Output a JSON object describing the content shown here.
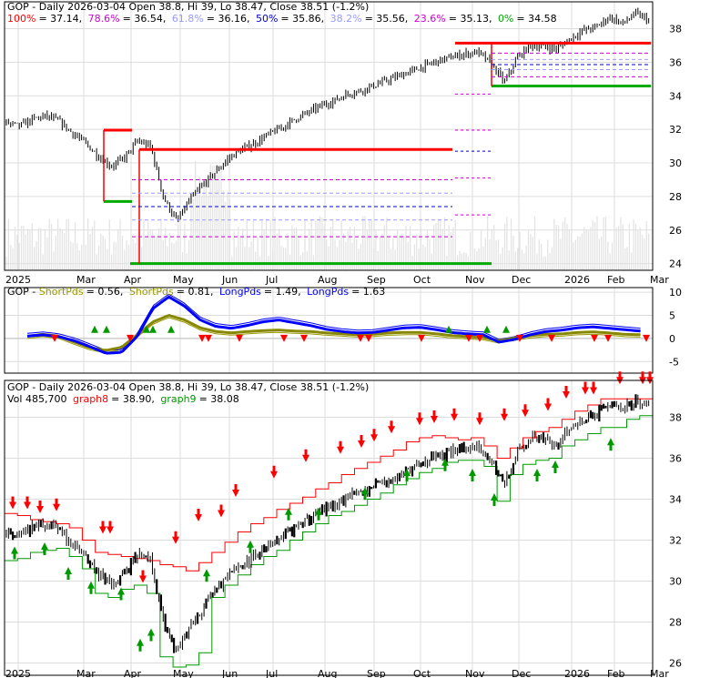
{
  "chart_data": [
    {
      "type": "line",
      "panel": "price-fibonacci",
      "title": "GOP - Daily 2026-03-04 Open 38.8, Hi 39, Lo 38.47, Close 38.51 (-1.2%)",
      "fib_levels": [
        {
          "pct": "100%",
          "value": 37.14,
          "color": "#ff0000"
        },
        {
          "pct": "78.6%",
          "value": 36.54,
          "color": "#cc00cc"
        },
        {
          "pct": "61.8%",
          "value": 36.16,
          "color": "#9999ff"
        },
        {
          "pct": "50%",
          "value": 35.86,
          "color": "#0000cc"
        },
        {
          "pct": "38.2%",
          "value": 35.56,
          "color": "#9999ff"
        },
        {
          "pct": "23.6%",
          "value": 35.13,
          "color": "#cc00cc"
        },
        {
          "pct": "0%",
          "value": 34.58,
          "color": "#00aa00"
        }
      ],
      "fib_values_text": [
        "= 37.14,",
        "= 36.54,",
        "= 36.16,",
        "= 35.86,",
        "= 35.56,",
        "= 35.13,",
        "= 34.58"
      ],
      "y_ticks": [
        "38",
        "36",
        "34",
        "32",
        "30",
        "28",
        "26",
        "24"
      ],
      "ylim": [
        23.6,
        39.6
      ],
      "x_ticks": [
        "2025",
        "Mar",
        "Apr",
        "May",
        "Jun",
        "Jul",
        "Aug",
        "Sep",
        "Oct",
        "Nov",
        "Dec",
        "2026",
        "Feb",
        "Mar"
      ],
      "x_tick_colors": [
        "#000000",
        "#000000",
        "#000000",
        "#000000",
        "#000000",
        "#000000",
        "#000000",
        "#000000",
        "#000000",
        "#000000",
        "#000000",
        "#000000",
        "#000000",
        "#000000"
      ],
      "close_series": [
        32.4,
        32.2,
        32.6,
        32.8,
        32.5,
        31.8,
        31.2,
        30.4,
        29.8,
        30.3,
        31.3,
        31.0,
        27.9,
        26.5,
        27.8,
        28.7,
        29.5,
        30.3,
        30.8,
        31.2,
        31.7,
        32.1,
        32.6,
        33.0,
        33.4,
        33.7,
        34.1,
        34.3,
        34.6,
        34.9,
        35.2,
        35.5,
        35.8,
        36.1,
        36.3,
        36.5,
        36.6,
        35.9,
        34.8,
        36.3,
        37.0,
        36.9,
        36.8,
        37.4,
        37.9,
        38.1,
        38.7,
        38.3,
        38.9,
        38.51
      ],
      "first_fib": {
        "high": 31.95,
        "low": 24.0,
        "levels": [
          31.95,
          30.9,
          30.0,
          28.6,
          27.5,
          26.6,
          25.4,
          24.0
        ]
      },
      "second_fib": {
        "high": 30.8,
        "low": 24.0
      }
    },
    {
      "type": "line",
      "panel": "periods-oscillator",
      "title_prefix": "GOP - ",
      "legend": [
        {
          "label": "ShortPds",
          "value": "= 0.56,",
          "color": "#999900"
        },
        {
          "label": "ShortPds",
          "value": "= 0.81,",
          "color": "#999900"
        },
        {
          "label": "LongPds",
          "value": "= 1.49,",
          "color": "#0000ff"
        },
        {
          "label": "LongPds",
          "value": "= 1.63",
          "color": "#0000ff"
        }
      ],
      "y_ticks": [
        "10",
        "5",
        "0",
        "-5"
      ],
      "ylim": [
        -7.5,
        11
      ],
      "long_series": [
        0.5,
        0.8,
        0.4,
        -0.5,
        -1.8,
        -3.2,
        -3.0,
        0.5,
        6.5,
        9.0,
        7.0,
        4.0,
        2.6,
        2.2,
        2.8,
        3.6,
        4.0,
        3.4,
        2.8,
        2.0,
        1.5,
        1.2,
        1.3,
        1.8,
        2.3,
        2.4,
        1.9,
        1.3,
        1.0,
        0.8,
        -0.8,
        -0.2,
        0.8,
        1.5,
        1.8,
        2.3,
        2.5,
        2.2,
        1.9,
        1.6
      ],
      "short_series": [
        0.5,
        0.9,
        0.5,
        -0.8,
        -2.0,
        -2.6,
        -1.9,
        0.8,
        3.6,
        5.0,
        4.0,
        2.3,
        1.5,
        1.2,
        1.5,
        1.7,
        1.8,
        1.6,
        1.5,
        1.2,
        1.0,
        0.8,
        0.9,
        1.2,
        1.3,
        1.3,
        1.0,
        0.6,
        0.4,
        0.2,
        -0.5,
        0.1,
        0.6,
        0.9,
        1.0,
        1.3,
        1.4,
        1.2,
        0.9,
        0.8
      ]
    },
    {
      "type": "line",
      "panel": "price-volume",
      "title": "GOP - Daily 2026-03-04 Open 38.8, Hi 39, Lo 38.47, Close 38.51 (-1.2%)",
      "legend": [
        {
          "label": "Vol 485,700",
          "color": "#000000"
        },
        {
          "label": "graph8",
          "value": "= 38.90,",
          "color": "#ff0000"
        },
        {
          "label": "graph9",
          "value": "= 38.08",
          "color": "#009900"
        }
      ],
      "y_ticks": [
        "38",
        "36",
        "34",
        "32",
        "30",
        "28",
        "26"
      ],
      "ylim": [
        25.4,
        39.8
      ],
      "x_ticks": [
        "2025",
        "Mar",
        "Apr",
        "May",
        "Jun",
        "Jul",
        "Aug",
        "Sep",
        "Oct",
        "Nov",
        "Dec",
        "2026",
        "Feb",
        "Mar"
      ],
      "close_series": [
        32.4,
        32.2,
        32.6,
        32.8,
        32.5,
        31.8,
        31.2,
        30.4,
        29.8,
        30.3,
        31.3,
        31.0,
        27.9,
        26.5,
        27.8,
        28.7,
        29.5,
        30.3,
        30.8,
        31.2,
        31.7,
        32.1,
        32.6,
        33.0,
        33.4,
        33.7,
        34.1,
        34.3,
        34.6,
        34.9,
        35.2,
        35.5,
        35.8,
        36.1,
        36.3,
        36.5,
        36.6,
        35.9,
        34.8,
        36.3,
        37.0,
        36.9,
        36.8,
        37.4,
        37.9,
        38.1,
        38.7,
        38.3,
        38.9,
        38.51
      ],
      "upper_band": [
        33.3,
        33.2,
        33.0,
        32.9,
        32.8,
        32.6,
        32.0,
        31.4,
        31.3,
        31.2,
        31.1,
        31.0,
        30.8,
        30.7,
        30.5,
        30.9,
        31.4,
        31.9,
        32.4,
        32.8,
        33.1,
        33.5,
        33.8,
        34.1,
        34.5,
        34.8,
        35.2,
        35.5,
        35.8,
        36.1,
        36.4,
        36.8,
        37.0,
        37.1,
        37.0,
        36.9,
        37.0,
        36.6,
        36.0,
        36.5,
        37.0,
        37.3,
        37.5,
        37.9,
        38.3,
        38.6,
        38.9,
        38.9,
        38.9,
        38.9
      ],
      "lower_band": [
        31.0,
        31.1,
        31.4,
        31.5,
        31.6,
        31.2,
        30.6,
        29.4,
        29.2,
        29.6,
        29.8,
        29.4,
        26.3,
        25.8,
        25.9,
        26.5,
        29.2,
        29.8,
        30.3,
        30.8,
        31.2,
        31.5,
        32.0,
        32.4,
        32.8,
        33.2,
        33.4,
        33.7,
        34.0,
        34.3,
        34.7,
        35.0,
        35.3,
        35.5,
        35.8,
        35.9,
        35.9,
        35.6,
        33.9,
        35.2,
        35.7,
        35.9,
        36.0,
        36.6,
        36.9,
        37.2,
        37.5,
        37.5,
        37.9,
        38.08
      ]
    }
  ]
}
